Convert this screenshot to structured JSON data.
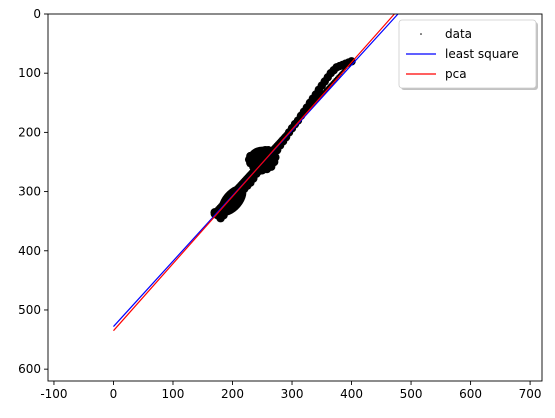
{
  "chart_data": {
    "type": "line",
    "title": "",
    "xlabel": "",
    "ylabel": "",
    "xlim": [
      -110,
      720
    ],
    "ylim": [
      620,
      0
    ],
    "y_inverted": true,
    "grid": false,
    "legend_placement": "top-right",
    "xticks": [
      -100,
      0,
      100,
      200,
      300,
      400,
      500,
      600,
      700
    ],
    "yticks": [
      0,
      100,
      200,
      300,
      400,
      500,
      600
    ],
    "series": [
      {
        "name": "data",
        "kind": "scatter",
        "color": "#000000",
        "description_points": [
          [
            170,
            335
          ],
          [
            175,
            340
          ],
          [
            180,
            345
          ],
          [
            185,
            340
          ],
          [
            190,
            330
          ],
          [
            195,
            325
          ],
          [
            200,
            320
          ],
          [
            205,
            315
          ],
          [
            210,
            305
          ],
          [
            215,
            300
          ],
          [
            220,
            295
          ],
          [
            225,
            290
          ],
          [
            230,
            285
          ],
          [
            235,
            278
          ],
          [
            240,
            270
          ],
          [
            245,
            265
          ],
          [
            250,
            258
          ],
          [
            255,
            252
          ],
          [
            260,
            245
          ],
          [
            265,
            240
          ],
          [
            270,
            235
          ],
          [
            275,
            230
          ],
          [
            280,
            222
          ],
          [
            285,
            215
          ],
          [
            290,
            208
          ],
          [
            295,
            200
          ],
          [
            300,
            193
          ],
          [
            305,
            186
          ],
          [
            310,
            180
          ],
          [
            315,
            172
          ],
          [
            320,
            165
          ],
          [
            325,
            158
          ],
          [
            330,
            150
          ],
          [
            335,
            143
          ],
          [
            340,
            136
          ],
          [
            345,
            128
          ],
          [
            350,
            121
          ],
          [
            355,
            114
          ],
          [
            360,
            107
          ],
          [
            365,
            100
          ],
          [
            370,
            95
          ],
          [
            375,
            90
          ],
          [
            380,
            88
          ],
          [
            385,
            86
          ],
          [
            390,
            84
          ],
          [
            395,
            82
          ],
          [
            400,
            80
          ],
          [
            230,
            240
          ],
          [
            235,
            238
          ],
          [
            240,
            235
          ],
          [
            245,
            233
          ],
          [
            250,
            232
          ],
          [
            255,
            230
          ],
          [
            260,
            230
          ],
          [
            265,
            232
          ],
          [
            270,
            236
          ],
          [
            272,
            242
          ],
          [
            270,
            250
          ],
          [
            265,
            258
          ],
          [
            258,
            262
          ],
          [
            250,
            264
          ],
          [
            242,
            262
          ],
          [
            235,
            258
          ],
          [
            230,
            252
          ],
          [
            228,
            246
          ],
          [
            240,
            245
          ],
          [
            250,
            245
          ],
          [
            260,
            248
          ],
          [
            255,
            240
          ],
          [
            245,
            255
          ]
        ]
      },
      {
        "name": "least square",
        "kind": "line",
        "color": "#0000ff",
        "x": [
          0,
          478
        ],
        "y": [
          528,
          0
        ]
      },
      {
        "name": "pca",
        "kind": "line",
        "color": "#ff0000",
        "x": [
          0,
          472
        ],
        "y": [
          535,
          0
        ]
      }
    ]
  }
}
